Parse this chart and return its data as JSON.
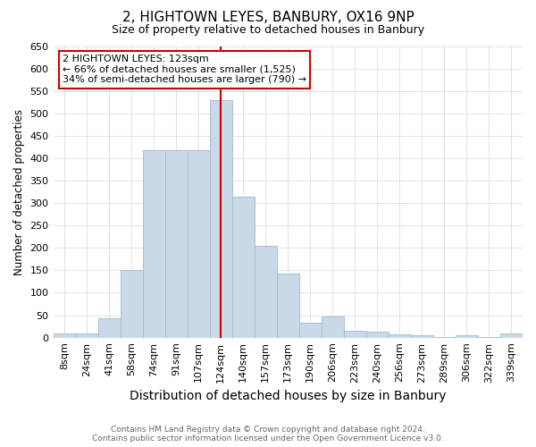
{
  "title": "2, HIGHTOWN LEYES, BANBURY, OX16 9NP",
  "subtitle": "Size of property relative to detached houses in Banbury",
  "xlabel": "Distribution of detached houses by size in Banbury",
  "ylabel": "Number of detached properties",
  "footer_line1": "Contains HM Land Registry data © Crown copyright and database right 2024.",
  "footer_line2": "Contains public sector information licensed under the Open Government Licence v3.0.",
  "categories": [
    "8sqm",
    "24sqm",
    "41sqm",
    "58sqm",
    "74sqm",
    "91sqm",
    "107sqm",
    "124sqm",
    "140sqm",
    "157sqm",
    "173sqm",
    "190sqm",
    "206sqm",
    "223sqm",
    "240sqm",
    "256sqm",
    "273sqm",
    "289sqm",
    "306sqm",
    "322sqm",
    "339sqm"
  ],
  "values": [
    9,
    9,
    43,
    150,
    417,
    418,
    418,
    530,
    315,
    205,
    142,
    33,
    48,
    16,
    14,
    8,
    5,
    2,
    5,
    2,
    9
  ],
  "bar_color": "#c9d9e8",
  "bar_edge_color": "#a8bfd0",
  "vline_x_index": 7,
  "vline_color": "#cc0000",
  "annotation_text": "2 HIGHTOWN LEYES: 123sqm\n← 66% of detached houses are smaller (1,525)\n34% of semi-detached houses are larger (790) →",
  "annotation_box_color": "#ffffff",
  "annotation_box_edge_color": "#cc0000",
  "ylim": [
    0,
    650
  ],
  "yticks": [
    0,
    50,
    100,
    150,
    200,
    250,
    300,
    350,
    400,
    450,
    500,
    550,
    600,
    650
  ],
  "background_color": "#ffffff",
  "grid_color": "#d0d8e0",
  "title_fontsize": 11,
  "subtitle_fontsize": 9,
  "xlabel_fontsize": 10,
  "ylabel_fontsize": 8.5,
  "tick_fontsize": 8,
  "footer_fontsize": 6.5,
  "ann_fontsize": 8
}
